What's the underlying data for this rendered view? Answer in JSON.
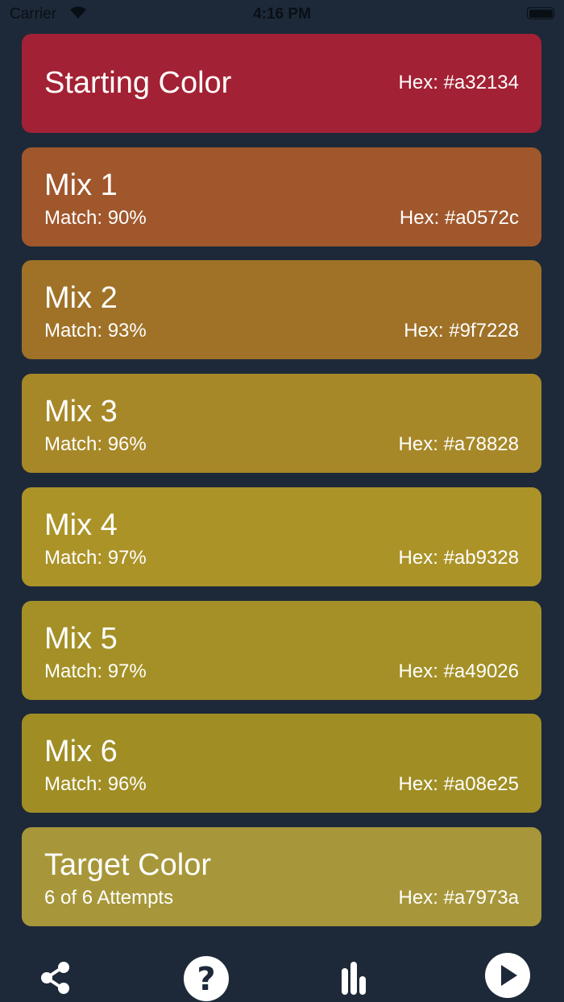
{
  "status_bar": {
    "carrier": "Carrier",
    "time": "4:16 PM"
  },
  "cards": [
    {
      "title": "Starting Color",
      "subtitle": "",
      "hex": "Hex: #a32134",
      "color": "#a32134"
    },
    {
      "title": "Mix 1",
      "subtitle": "Match: 90%",
      "hex": "Hex: #a0572c",
      "color": "#a0572c"
    },
    {
      "title": "Mix 2",
      "subtitle": "Match: 93%",
      "hex": "Hex: #9f7228",
      "color": "#9f7228"
    },
    {
      "title": "Mix 3",
      "subtitle": "Match: 96%",
      "hex": "Hex: #a78828",
      "color": "#a78828"
    },
    {
      "title": "Mix 4",
      "subtitle": "Match: 97%",
      "hex": "Hex: #ab9328",
      "color": "#ab9328"
    },
    {
      "title": "Mix 5",
      "subtitle": "Match: 97%",
      "hex": "Hex: #a49026",
      "color": "#a49026"
    },
    {
      "title": "Mix 6",
      "subtitle": "Match: 96%",
      "hex": "Hex: #a08e25",
      "color": "#a08e25"
    },
    {
      "title": "Target Color",
      "subtitle": "6 of 6 Attempts",
      "hex": "Hex: #a7973a",
      "color": "#a7973a"
    }
  ],
  "toolbar": {
    "icons": [
      "share-icon",
      "help-icon",
      "stats-icon",
      "play-icon"
    ]
  },
  "colors": {
    "background": "#1d2939"
  }
}
